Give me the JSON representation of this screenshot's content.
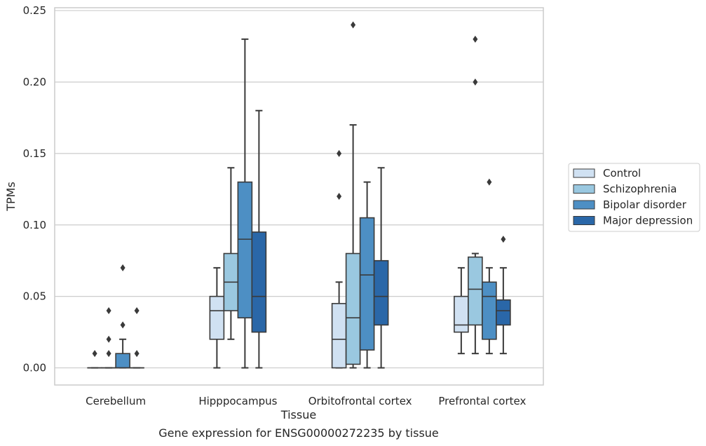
{
  "chart_data": {
    "type": "box",
    "caption": "Gene expression for ENSG00000272235 by tissue",
    "xlabel": "Tissue",
    "ylabel": "TPMs",
    "ylim": [
      -0.012,
      0.252
    ],
    "yticks": [
      0.0,
      0.05,
      0.1,
      0.15,
      0.2,
      0.25
    ],
    "ytick_labels": [
      "0.00",
      "0.05",
      "0.10",
      "0.15",
      "0.20",
      "0.25"
    ],
    "grid": "horizontal",
    "legend_position": "right",
    "categories": [
      "Cerebellum",
      "Hipppocampus",
      "Orbitofrontal cortex",
      "Prefrontal cortex"
    ],
    "series": [
      {
        "name": "Control",
        "color": "#d0e1f2",
        "boxes": [
          {
            "whislo": 0.0,
            "q1": 0.0,
            "med": 0.0,
            "q3": 0.0,
            "whishi": 0.0,
            "fliers": [
              0.01
            ]
          },
          {
            "whislo": 0.0,
            "q1": 0.02,
            "med": 0.04,
            "q3": 0.05,
            "whishi": 0.07,
            "fliers": []
          },
          {
            "whislo": 0.0,
            "q1": 0.0,
            "med": 0.02,
            "q3": 0.045,
            "whishi": 0.06,
            "fliers": [
              0.12,
              0.15
            ]
          },
          {
            "whislo": 0.01,
            "q1": 0.025,
            "med": 0.03,
            "q3": 0.05,
            "whishi": 0.07,
            "fliers": []
          }
        ]
      },
      {
        "name": "Schizophrenia",
        "color": "#9ac8e0",
        "boxes": [
          {
            "whislo": 0.0,
            "q1": 0.0,
            "med": 0.0,
            "q3": 0.0,
            "whishi": 0.0,
            "fliers": [
              0.01,
              0.02,
              0.04
            ]
          },
          {
            "whislo": 0.02,
            "q1": 0.04,
            "med": 0.06,
            "q3": 0.08,
            "whishi": 0.14,
            "fliers": []
          },
          {
            "whislo": 0.0,
            "q1": 0.0025,
            "med": 0.035,
            "q3": 0.08,
            "whishi": 0.17,
            "fliers": [
              0.24
            ]
          },
          {
            "whislo": 0.01,
            "q1": 0.03,
            "med": 0.055,
            "q3": 0.0775,
            "whishi": 0.08,
            "fliers": [
              0.2,
              0.23
            ]
          }
        ]
      },
      {
        "name": "Bipolar disorder",
        "color": "#4d8fc4",
        "boxes": [
          {
            "whislo": 0.0,
            "q1": 0.0,
            "med": 0.0,
            "q3": 0.01,
            "whishi": 0.02,
            "fliers": [
              0.03,
              0.07
            ]
          },
          {
            "whislo": 0.0,
            "q1": 0.035,
            "med": 0.09,
            "q3": 0.13,
            "whishi": 0.23,
            "fliers": []
          },
          {
            "whislo": 0.0,
            "q1": 0.0125,
            "med": 0.065,
            "q3": 0.105,
            "whishi": 0.13,
            "fliers": []
          },
          {
            "whislo": 0.01,
            "q1": 0.02,
            "med": 0.05,
            "q3": 0.06,
            "whishi": 0.07,
            "fliers": [
              0.13
            ]
          }
        ]
      },
      {
        "name": "Major depression",
        "color": "#2a67a8",
        "boxes": [
          {
            "whislo": 0.0,
            "q1": 0.0,
            "med": 0.0,
            "q3": 0.0,
            "whishi": 0.0,
            "fliers": [
              0.01,
              0.04
            ]
          },
          {
            "whislo": 0.0,
            "q1": 0.025,
            "med": 0.05,
            "q3": 0.095,
            "whishi": 0.18,
            "fliers": []
          },
          {
            "whislo": 0.0,
            "q1": 0.03,
            "med": 0.05,
            "q3": 0.075,
            "whishi": 0.14,
            "fliers": []
          },
          {
            "whislo": 0.01,
            "q1": 0.03,
            "med": 0.04,
            "q3": 0.0475,
            "whishi": 0.07,
            "fliers": [
              0.09
            ]
          }
        ]
      }
    ]
  }
}
